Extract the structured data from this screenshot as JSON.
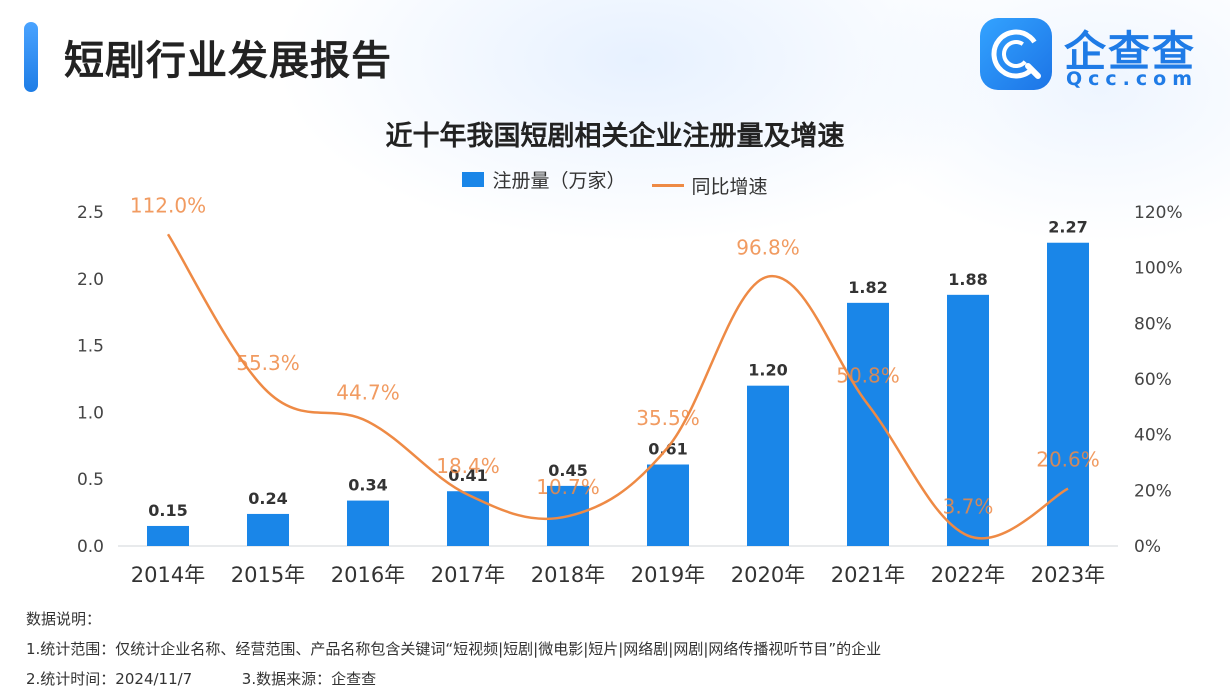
{
  "header": {
    "report_title": "短剧行业发展报告"
  },
  "brand": {
    "name": "企查查",
    "domain": "Qcc.com",
    "color": "#1f7be6"
  },
  "chart_data": {
    "type": "bar",
    "title": "近十年我国短剧相关企业注册量及增速",
    "categories": [
      "2014年",
      "2015年",
      "2016年",
      "2017年",
      "2018年",
      "2019年",
      "2020年",
      "2021年",
      "2022年",
      "2023年"
    ],
    "series": [
      {
        "name": "注册量（万家）",
        "type": "bar",
        "axis": "left",
        "color": "#1a86e8",
        "values": [
          0.15,
          0.24,
          0.34,
          0.41,
          0.45,
          0.61,
          1.2,
          1.82,
          1.88,
          2.27
        ],
        "labels": [
          "0.15",
          "0.24",
          "0.34",
          "0.41",
          "0.45",
          "0.61",
          "1.20",
          "1.82",
          "1.88",
          "2.27"
        ]
      },
      {
        "name": "同比增速",
        "type": "line",
        "axis": "right",
        "color": "#ee8a45",
        "values": [
          112.0,
          55.3,
          44.7,
          18.4,
          10.7,
          35.5,
          96.8,
          50.8,
          3.7,
          20.6
        ],
        "labels": [
          "112.0%",
          "55.3%",
          "44.7%",
          "18.4%",
          "10.7%",
          "35.5%",
          "96.8%",
          "50.8%",
          "3.7%",
          "20.6%"
        ]
      }
    ],
    "y_left": {
      "min": 0,
      "max": 2.5,
      "ticks": [
        "0.0",
        "0.5",
        "1.0",
        "1.5",
        "2.0",
        "2.5"
      ]
    },
    "y_right": {
      "min": 0,
      "max": 120,
      "ticks": [
        "0%",
        "20%",
        "40%",
        "60%",
        "80%",
        "100%",
        "120%"
      ]
    },
    "legend_position": "top-center",
    "grid": false
  },
  "notes": {
    "heading": "数据说明：",
    "scope": "1.统计范围：仅统计企业名称、经营范围、产品名称包含关键词“短视频|短剧|微电影|短片|网络剧|网剧|网络传播视听节目”的企业",
    "time": "2.统计时间：2024/11/7",
    "source": "3.数据来源：企查查"
  }
}
